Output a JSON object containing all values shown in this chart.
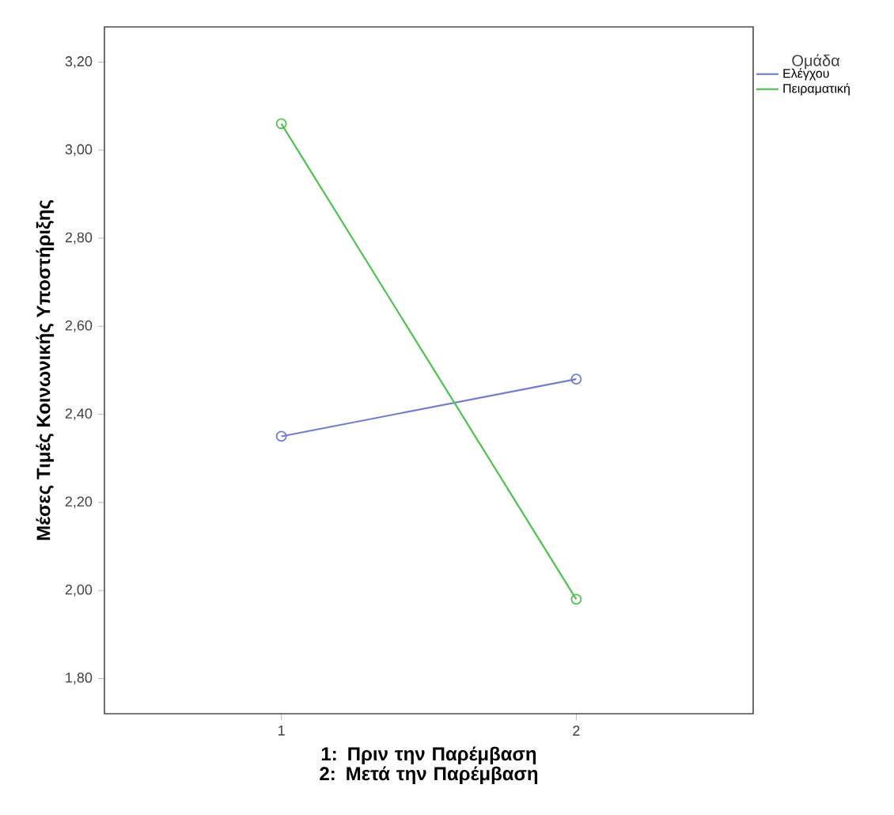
{
  "chart_data": {
    "type": "line",
    "xlabel": "1: Πριν την Παρέμβαση 2: Μετά την Παρέμβαση",
    "ylabel": "Μέσες Τιμές Κοινωνικής Υποστήριξης",
    "legend_title": "Ομάδα",
    "x": [
      1,
      2
    ],
    "series": [
      {
        "name": "Ελέγχου",
        "color": "#6f7fd0",
        "values": [
          2.35,
          2.48
        ]
      },
      {
        "name": "Πειραματική",
        "color": "#4fc24f",
        "values": [
          3.06,
          1.98
        ]
      }
    ],
    "xlim": [
      0.4,
      2.6
    ],
    "xticks": [
      1,
      2
    ],
    "ylim": [
      1.72,
      3.28
    ],
    "yticks": [
      {
        "value": 1.8,
        "label": "1,80"
      },
      {
        "value": 2.0,
        "label": "2,00"
      },
      {
        "value": 2.2,
        "label": "2,20"
      },
      {
        "value": 2.4,
        "label": "2,40"
      },
      {
        "value": 2.6,
        "label": "2,60"
      },
      {
        "value": 2.8,
        "label": "2,80"
      },
      {
        "value": 3.0,
        "label": "3,00"
      },
      {
        "value": 3.2,
        "label": "3,20"
      }
    ],
    "grid": false,
    "legend": "top right",
    "marker": "circle",
    "line_style": "solid"
  }
}
